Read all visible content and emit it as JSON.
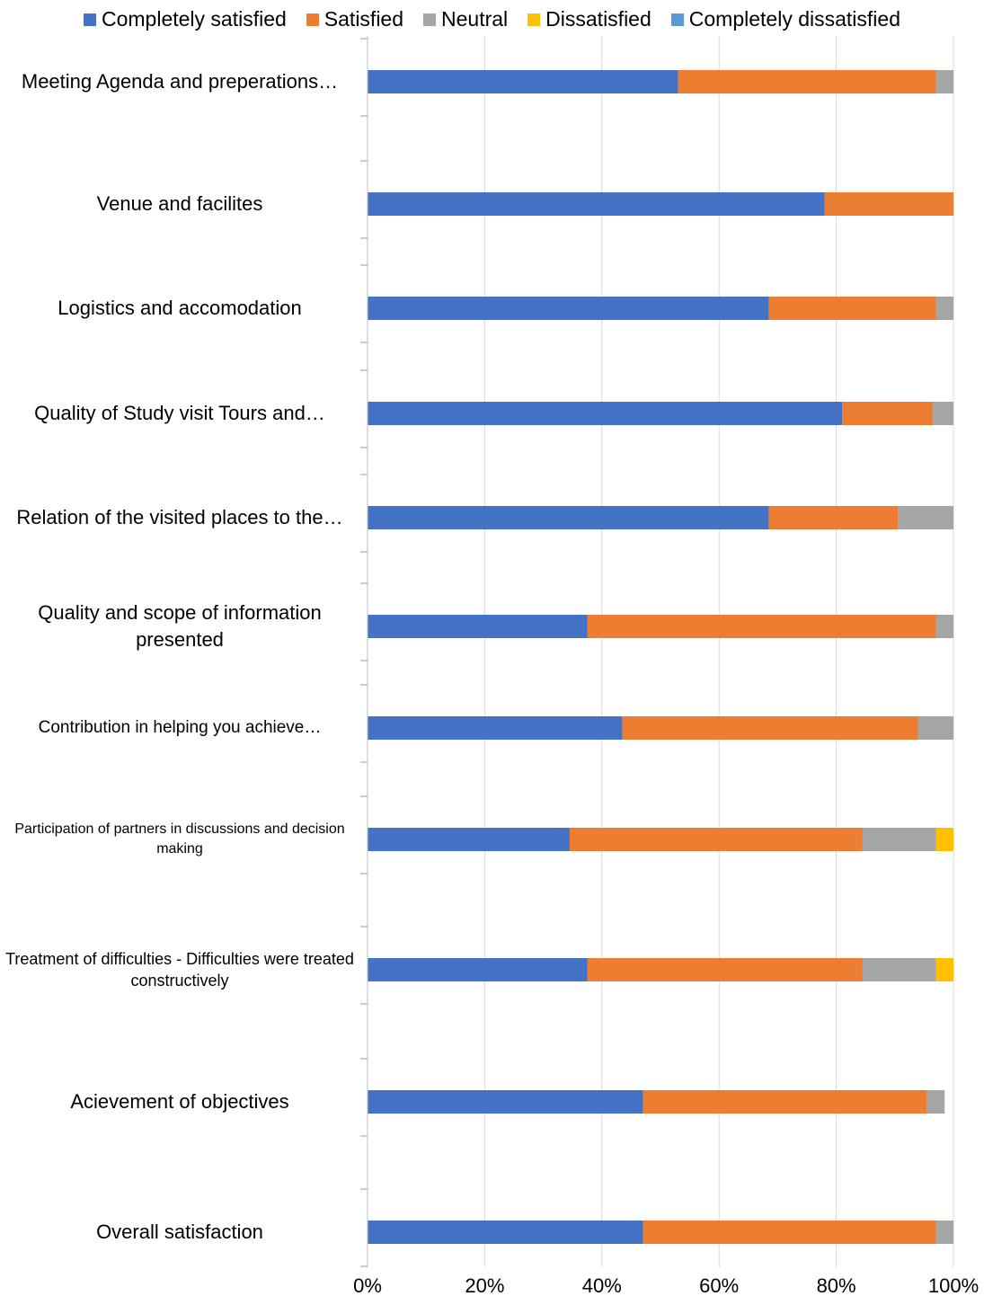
{
  "chart_data": {
    "type": "bar",
    "orientation": "horizontal",
    "stacked": true,
    "categories": [
      "Meeting Agenda and preperations…",
      "Venue and facilites",
      "Logistics and accomodation",
      "Quality of Study visit Tours and…",
      "Relation of the visited places to the…",
      "Quality and scope of information presented",
      "Contribution in helping you achieve…",
      "Participation of partners in discussions and decision making",
      "Treatment  of difficulties - Difficulties were treated constructively",
      "Acievement of objectives",
      "Overall satisfaction"
    ],
    "series": [
      {
        "name": "Completely satisfied",
        "color": "#4472C4",
        "values": [
          53,
          78,
          68.5,
          81,
          68.5,
          37.5,
          43.5,
          34.5,
          37.5,
          47,
          47
        ]
      },
      {
        "name": "Satisfied",
        "color": "#ED7D31",
        "values": [
          44,
          22,
          28.5,
          15.5,
          22,
          59.5,
          50.5,
          50,
          47,
          48.5,
          50
        ]
      },
      {
        "name": "Neutral",
        "color": "#A5A5A5",
        "values": [
          3,
          0,
          3,
          3.5,
          9.5,
          3,
          6,
          12.5,
          12.5,
          3,
          3
        ]
      },
      {
        "name": "Dissatisfied",
        "color": "#FFC000",
        "values": [
          0,
          0,
          0,
          0,
          0,
          0,
          0,
          3,
          3,
          0,
          0
        ]
      },
      {
        "name": "Completely dissatisfied",
        "color": "#5B9BD5",
        "values": [
          0,
          0,
          0,
          0,
          0,
          0,
          0,
          0,
          0,
          0,
          0
        ]
      }
    ],
    "xlim": [
      0,
      100
    ],
    "xticks": [
      "0%",
      "20%",
      "40%",
      "60%",
      "80%",
      "100%"
    ],
    "grid": true,
    "legend": "top"
  }
}
